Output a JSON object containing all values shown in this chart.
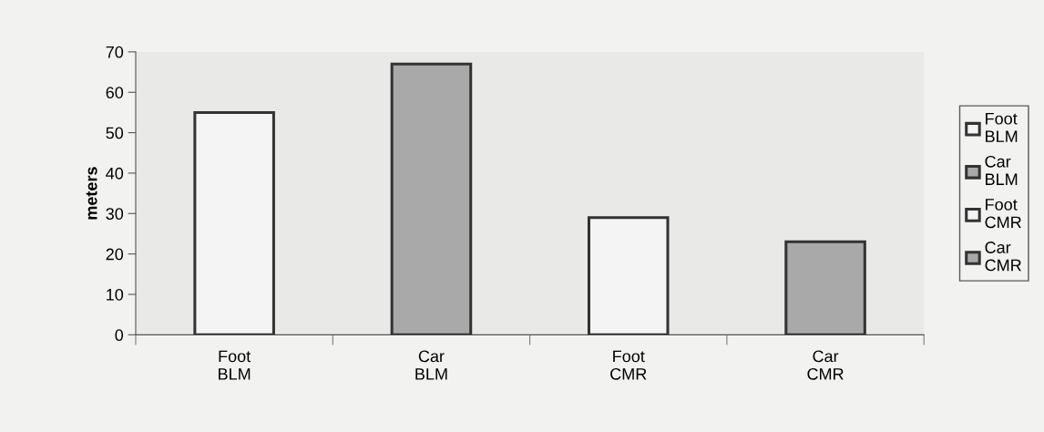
{
  "chart_data": {
    "type": "bar",
    "ylabel": "meters",
    "categories": [
      "Foot\nBLM",
      "Car\nBLM",
      "Foot\nCMR",
      "Car\nCMR"
    ],
    "series": [
      {
        "name": "Foot\nBLM",
        "color": "#f4f4f4",
        "values": [
          55,
          null,
          null,
          null
        ]
      },
      {
        "name": "Car\nBLM",
        "color": "#a9a9a9",
        "values": [
          null,
          67,
          null,
          null
        ]
      },
      {
        "name": "Foot\nCMR",
        "color": "#f4f4f4",
        "values": [
          null,
          null,
          29,
          null
        ]
      },
      {
        "name": "Car\nCMR",
        "color": "#a9a9a9",
        "values": [
          null,
          null,
          null,
          23
        ]
      }
    ],
    "ylim": [
      0,
      70
    ],
    "yticks": [
      0,
      10,
      20,
      30,
      40,
      50,
      60,
      70
    ],
    "grid": false,
    "legend": "right"
  }
}
